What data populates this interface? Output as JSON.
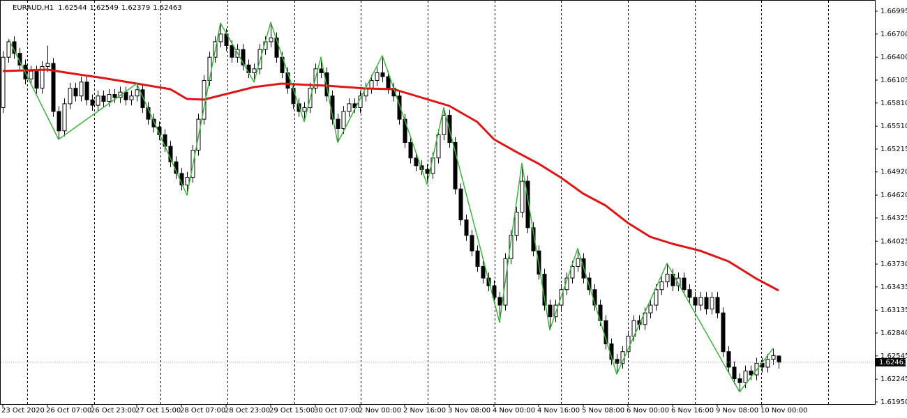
{
  "chart_data": {
    "type": "candlestick",
    "title": "EURAUD,H1",
    "categories": [
      "23 Oct 2020",
      null,
      null,
      null,
      null,
      null,
      null,
      null,
      "26 Oct 07:00",
      null,
      null,
      null,
      null,
      null,
      null,
      null,
      "26 Oct 23:00",
      null,
      null,
      null,
      null,
      null,
      null,
      null,
      "27 Oct 15:00",
      null,
      null,
      null,
      null,
      null,
      null,
      null,
      "28 Oct 07:00",
      null,
      null,
      null,
      null,
      null,
      null,
      null,
      "28 Oct 23:00",
      null,
      null,
      null,
      null,
      null,
      null,
      null,
      "29 Oct 15:00",
      null,
      null,
      null,
      null,
      null,
      null,
      null,
      "30 Oct 07:00",
      null,
      null,
      null,
      null,
      null,
      null,
      null,
      "2 Nov 00:00",
      null,
      null,
      null,
      null,
      null,
      null,
      null,
      "2 Nov 16:00",
      null,
      null,
      null,
      null,
      null,
      null,
      null,
      "3 Nov 08:00",
      null,
      null,
      null,
      null,
      null,
      null,
      null,
      "4 Nov 00:00",
      null,
      null,
      null,
      null,
      null,
      null,
      null,
      "4 Nov 16:00",
      null,
      null,
      null,
      null,
      null,
      null,
      null,
      "5 Nov 08:00",
      null,
      null,
      null,
      null,
      null,
      null,
      null,
      "6 Nov 00:00",
      null,
      null,
      null,
      null,
      null,
      null,
      null,
      "6 Nov 16:00",
      null,
      null,
      null,
      null,
      null,
      null,
      null,
      "9 Nov 08:00",
      null,
      null,
      null,
      null,
      null,
      null,
      null,
      "10 Nov 00:00",
      null,
      null,
      null
    ],
    "open": [
      1.6575,
      1.664,
      1.666,
      1.6645,
      1.663,
      1.6612,
      1.6622,
      1.66,
      1.6628,
      1.6632,
      1.657,
      1.6545,
      1.658,
      1.66,
      1.659,
      1.6608,
      1.6585,
      1.6578,
      1.659,
      1.6583,
      1.6592,
      1.6588,
      1.6595,
      1.6585,
      1.659,
      1.6598,
      1.6575,
      1.656,
      1.655,
      1.654,
      1.6525,
      1.6505,
      1.649,
      1.6475,
      1.6485,
      1.652,
      1.656,
      1.661,
      1.664,
      1.666,
      1.667,
      1.6655,
      1.664,
      1.665,
      1.663,
      1.662,
      1.6625,
      1.665,
      1.666,
      1.6665,
      1.664,
      1.662,
      1.66,
      1.658,
      1.657,
      1.6575,
      1.66,
      1.6625,
      1.662,
      1.659,
      1.656,
      1.6548,
      1.657,
      1.658,
      1.6575,
      1.659,
      1.66,
      1.661,
      1.662,
      1.6615,
      1.66,
      1.659,
      1.656,
      1.653,
      1.651,
      1.65,
      1.6495,
      1.649,
      1.651,
      1.654,
      1.6565,
      1.653,
      1.647,
      1.643,
      1.641,
      1.639,
      1.637,
      1.6355,
      1.6345,
      1.633,
      1.632,
      1.638,
      1.641,
      1.644,
      1.648,
      1.642,
      1.639,
      1.636,
      1.632,
      1.6305,
      1.632,
      1.634,
      1.6355,
      1.637,
      1.638,
      1.6355,
      1.634,
      1.632,
      1.63,
      1.627,
      1.625,
      1.6245,
      1.626,
      1.628,
      1.63,
      1.6295,
      1.631,
      1.632,
      1.634,
      1.635,
      1.636,
      1.6345,
      1.6355,
      1.634,
      1.633,
      1.632,
      1.633,
      1.6315,
      1.633,
      1.631,
      1.626,
      1.624,
      1.6225,
      1.622,
      1.6235,
      1.623,
      1.6245,
      1.624,
      1.625,
      1.62544
    ],
    "high": [
      1.6648,
      1.6664,
      1.6667,
      1.6652,
      1.6637,
      1.6629,
      1.6629,
      1.6635,
      1.6655,
      1.6639,
      1.6577,
      1.6587,
      1.6607,
      1.6607,
      1.6615,
      1.6615,
      1.6592,
      1.6597,
      1.6597,
      1.6599,
      1.6599,
      1.6602,
      1.6602,
      1.6597,
      1.6606,
      1.6605,
      1.6582,
      1.6567,
      1.6557,
      1.6547,
      1.6532,
      1.6512,
      1.6497,
      1.6492,
      1.6527,
      1.6567,
      1.6617,
      1.6647,
      1.6667,
      1.6684,
      1.6677,
      1.6662,
      1.6657,
      1.6657,
      1.6637,
      1.6632,
      1.6657,
      1.6667,
      1.6685,
      1.6672,
      1.6647,
      1.6627,
      1.6607,
      1.6587,
      1.6582,
      1.6607,
      1.6632,
      1.664,
      1.6627,
      1.6597,
      1.6567,
      1.6577,
      1.6587,
      1.6587,
      1.6597,
      1.6607,
      1.6617,
      1.6627,
      1.6642,
      1.6622,
      1.6607,
      1.6597,
      1.6567,
      1.6537,
      1.6517,
      1.6507,
      1.6502,
      1.6517,
      1.6547,
      1.6575,
      1.6572,
      1.6537,
      1.6477,
      1.6437,
      1.6417,
      1.6397,
      1.6377,
      1.6362,
      1.6352,
      1.6337,
      1.6387,
      1.6417,
      1.6447,
      1.6503,
      1.6487,
      1.6427,
      1.6397,
      1.6367,
      1.6327,
      1.6327,
      1.6347,
      1.6362,
      1.6377,
      1.6393,
      1.6387,
      1.6362,
      1.6347,
      1.6327,
      1.6307,
      1.6277,
      1.6257,
      1.6267,
      1.6287,
      1.6307,
      1.6307,
      1.6317,
      1.6327,
      1.6347,
      1.6357,
      1.6374,
      1.6367,
      1.6362,
      1.6362,
      1.6347,
      1.6337,
      1.6337,
      1.6337,
      1.6337,
      1.6337,
      1.6317,
      1.6267,
      1.6247,
      1.6232,
      1.6242,
      1.6242,
      1.6252,
      1.6252,
      1.6257,
      1.6264,
      1.62549
    ],
    "low": [
      1.6568,
      1.6633,
      1.6638,
      1.6623,
      1.6605,
      1.6605,
      1.6593,
      1.6593,
      1.6621,
      1.6563,
      1.6534,
      1.6538,
      1.6573,
      1.6583,
      1.6583,
      1.6578,
      1.6571,
      1.6571,
      1.6576,
      1.6576,
      1.6581,
      1.6581,
      1.6578,
      1.6578,
      1.6583,
      1.6568,
      1.6553,
      1.6543,
      1.6533,
      1.6518,
      1.6498,
      1.6483,
      1.6468,
      1.6462,
      1.6478,
      1.6513,
      1.6553,
      1.6603,
      1.6633,
      1.6653,
      1.6648,
      1.6633,
      1.6633,
      1.6623,
      1.6613,
      1.6608,
      1.6618,
      1.6643,
      1.6653,
      1.6633,
      1.6613,
      1.6593,
      1.6573,
      1.6563,
      1.6557,
      1.6568,
      1.6593,
      1.6613,
      1.6583,
      1.6553,
      1.653,
      1.6541,
      1.6563,
      1.6568,
      1.6568,
      1.6583,
      1.6593,
      1.6603,
      1.6608,
      1.6593,
      1.6583,
      1.6553,
      1.6523,
      1.6503,
      1.6493,
      1.6488,
      1.6476,
      1.6483,
      1.6503,
      1.6533,
      1.6523,
      1.6463,
      1.6423,
      1.6403,
      1.6383,
      1.6363,
      1.6348,
      1.6338,
      1.6323,
      1.6298,
      1.6313,
      1.6373,
      1.6403,
      1.6433,
      1.6413,
      1.6383,
      1.6353,
      1.6313,
      1.6288,
      1.6298,
      1.6313,
      1.6333,
      1.6348,
      1.6363,
      1.6348,
      1.6333,
      1.6313,
      1.6293,
      1.6263,
      1.6243,
      1.6231,
      1.6238,
      1.6253,
      1.6273,
      1.6288,
      1.6288,
      1.6303,
      1.6313,
      1.6333,
      1.6343,
      1.6338,
      1.6338,
      1.6333,
      1.6323,
      1.6313,
      1.6313,
      1.6308,
      1.6308,
      1.6303,
      1.6253,
      1.6233,
      1.6218,
      1.6208,
      1.6213,
      1.6223,
      1.6223,
      1.6233,
      1.6233,
      1.6243,
      1.62379
    ],
    "close": [
      1.664,
      1.666,
      1.6645,
      1.663,
      1.6612,
      1.6622,
      1.66,
      1.6628,
      1.6632,
      1.657,
      1.6545,
      1.658,
      1.66,
      1.659,
      1.6608,
      1.6585,
      1.6578,
      1.659,
      1.6583,
      1.6592,
      1.6588,
      1.6595,
      1.6585,
      1.659,
      1.6598,
      1.6575,
      1.656,
      1.655,
      1.654,
      1.6525,
      1.6505,
      1.649,
      1.6475,
      1.6485,
      1.652,
      1.656,
      1.661,
      1.664,
      1.666,
      1.667,
      1.6655,
      1.664,
      1.665,
      1.663,
      1.662,
      1.6625,
      1.665,
      1.666,
      1.6665,
      1.664,
      1.662,
      1.66,
      1.658,
      1.657,
      1.6575,
      1.66,
      1.6625,
      1.662,
      1.659,
      1.656,
      1.6548,
      1.657,
      1.658,
      1.6575,
      1.659,
      1.66,
      1.661,
      1.662,
      1.6615,
      1.66,
      1.659,
      1.656,
      1.653,
      1.651,
      1.65,
      1.6495,
      1.649,
      1.651,
      1.654,
      1.6565,
      1.653,
      1.647,
      1.643,
      1.641,
      1.639,
      1.637,
      1.6355,
      1.6345,
      1.633,
      1.632,
      1.638,
      1.641,
      1.644,
      1.648,
      1.642,
      1.639,
      1.636,
      1.632,
      1.6305,
      1.632,
      1.634,
      1.6355,
      1.637,
      1.638,
      1.6355,
      1.634,
      1.632,
      1.63,
      1.627,
      1.625,
      1.6245,
      1.626,
      1.628,
      1.63,
      1.6295,
      1.631,
      1.632,
      1.634,
      1.635,
      1.636,
      1.6345,
      1.6355,
      1.634,
      1.633,
      1.632,
      1.633,
      1.6315,
      1.633,
      1.631,
      1.626,
      1.624,
      1.6225,
      1.622,
      1.6235,
      1.623,
      1.6245,
      1.624,
      1.625,
      1.6255,
      1.62463
    ],
    "overlays": [
      {
        "color": "#e01414",
        "width": 3,
        "x": [
          0,
          8,
          12,
          18,
          24,
          30,
          33,
          36,
          40,
          45,
          50,
          55,
          58,
          65,
          70,
          75,
          80,
          85,
          88,
          92,
          96,
          100,
          104,
          108,
          112,
          116,
          120,
          125,
          130,
          135,
          139
        ],
        "values": [
          1.66222,
          1.6624,
          1.66195,
          1.66132,
          1.6606,
          1.65988,
          1.65862,
          1.65853,
          1.65925,
          1.66015,
          1.6606,
          1.66042,
          1.66033,
          1.65997,
          1.65988,
          1.6588,
          1.65772,
          1.65565,
          1.6534,
          1.65178,
          1.65026,
          1.64846,
          1.64639,
          1.64486,
          1.64261,
          1.64081,
          1.63991,
          1.63901,
          1.63766,
          1.63542,
          1.63389
        ]
      },
      {
        "color": "#3cb43c",
        "width": 1.5,
        "x": [
          1,
          10,
          24,
          33,
          39,
          45,
          48,
          54,
          57,
          60,
          68,
          76,
          79,
          89,
          93,
          98,
          103,
          110,
          119,
          132,
          138
        ],
        "values": [
          1.6664,
          1.6534,
          1.6606,
          1.6462,
          1.6684,
          1.6608,
          1.6685,
          1.6557,
          1.664,
          1.653,
          1.6642,
          1.6476,
          1.6575,
          1.6298,
          1.6503,
          1.6288,
          1.6393,
          1.6231,
          1.6374,
          1.6208,
          1.6264
        ]
      }
    ],
    "ylim": [
      1.61923,
      1.67103
    ],
    "yticks": [
      1.66995,
      {
        "value": 1.667,
        "label": "1.66700"
      },
      {
        "value": 1.664,
        "label": "1.66400"
      },
      1.66105,
      {
        "value": 1.6581,
        "label": "1.65810"
      },
      {
        "value": 1.6551,
        "label": "1.65510"
      },
      1.65215,
      {
        "value": 1.6492,
        "label": "1.64920"
      },
      {
        "value": 1.6462,
        "label": "1.64620"
      },
      1.64325,
      1.64025,
      {
        "value": 1.6373,
        "label": "1.63730"
      },
      1.63435,
      1.63135,
      {
        "value": 1.6284,
        "label": "1.62840"
      },
      1.62545,
      1.62245,
      {
        "value": 1.6195,
        "label": "1.61950"
      }
    ]
  }
}
